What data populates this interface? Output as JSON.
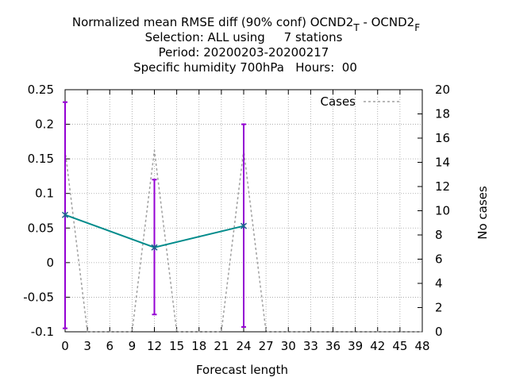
{
  "chart_data": {
    "type": "line",
    "title": {
      "line1_main": "Normalized mean RMSE diff (90% conf) OCND2",
      "line1_sub1": "T",
      "line1_mid": " - OCND2",
      "line1_sub2": "F",
      "line2": "Selection: ALL using     7 stations",
      "line3": "Period: 20200203-20200217",
      "line4": "Specific humidity 700hPa   Hours:  00"
    },
    "xlabel": "Forecast length",
    "ylabel": "",
    "y2label": "No cases",
    "xlim": [
      0,
      48
    ],
    "ylim": [
      -0.1,
      0.25
    ],
    "y2lim": [
      0,
      20
    ],
    "grid": true,
    "x_ticks": [
      "0",
      "3",
      "6",
      "9",
      "12",
      "15",
      "18",
      "21",
      "24",
      "27",
      "30",
      "33",
      "36",
      "39",
      "42",
      "45",
      "48"
    ],
    "y_ticks": [
      "-0.1",
      "-0.05",
      "0",
      "0.05",
      "0.1",
      "0.15",
      "0.2",
      "0.25"
    ],
    "y2_ticks": [
      "0",
      "2",
      "4",
      "6",
      "8",
      "10",
      "12",
      "14",
      "16",
      "18",
      "20"
    ],
    "legend_position": "top-right",
    "series": [
      {
        "name": "",
        "kind": "mean-with-error-bars",
        "color": "#008b8b",
        "errorbar_color": "#9400d3",
        "x": [
          0,
          12,
          24
        ],
        "y": [
          0.069,
          0.022,
          0.053
        ],
        "err_low": [
          -0.095,
          -0.075,
          -0.093
        ],
        "err_high": [
          0.232,
          0.12,
          0.2
        ]
      },
      {
        "name": "Cases",
        "kind": "cases",
        "axis": "y2",
        "color": "#a0a0a0",
        "x": [
          0,
          3,
          6,
          9,
          12,
          15,
          18,
          21,
          24,
          27,
          30,
          33,
          36,
          39,
          42,
          45,
          48
        ],
        "y": [
          15,
          0,
          0,
          0,
          15,
          0,
          0,
          0,
          15,
          0,
          0,
          0,
          0,
          0,
          0,
          0,
          0
        ]
      }
    ]
  }
}
